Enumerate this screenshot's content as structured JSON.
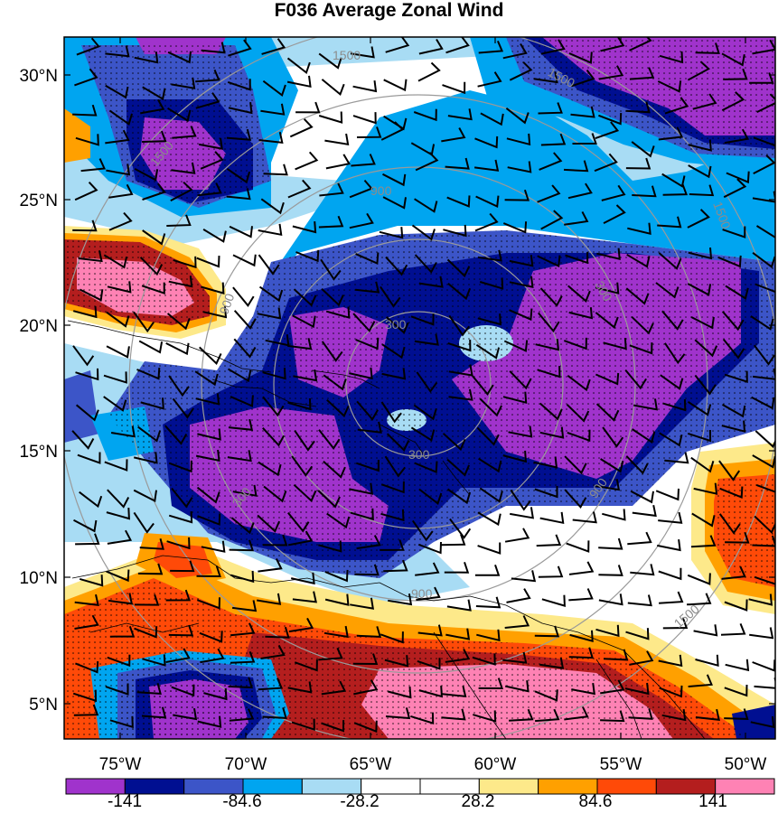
{
  "title": "F036 Average Zonal Wind",
  "lat_labels": [
    "30°N",
    "25°N",
    "20°N",
    "15°N",
    "10°N",
    "5°N"
  ],
  "lon_labels": [
    "75°W",
    "70°W",
    "65°W",
    "60°W",
    "55°W",
    "50°W"
  ],
  "colorbar": {
    "colors": [
      "#a033cc",
      "#000f91",
      "#3c55c8",
      "#00a5f0",
      "#a8dcf4",
      "#ffffff",
      "#ffffff",
      "#fde98a",
      "#ffa000",
      "#ff4a08",
      "#b41e1e",
      "#fe82b4"
    ],
    "labels": [
      "-141",
      "-84.6",
      "-28.2",
      "28.2",
      "84.6",
      "141"
    ]
  },
  "range_ring_labels": [
    "1500",
    "1500",
    "1500",
    "900",
    "900",
    "900",
    "900",
    "300",
    "300",
    "300",
    "300",
    "1500",
    "1500"
  ]
}
